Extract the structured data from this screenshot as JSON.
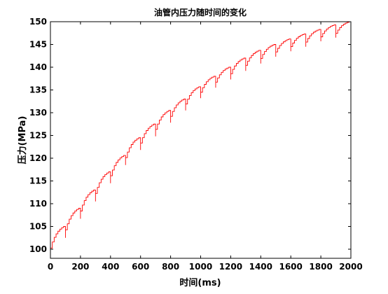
{
  "chart_data": {
    "type": "line",
    "title": "油管内压力随时间的变化",
    "xlabel": "时间(ms)",
    "ylabel": "压力(MPa)",
    "xlim": [
      0,
      2000
    ],
    "ylim": [
      98,
      150
    ],
    "xticks": [
      "0",
      "200",
      "400",
      "600",
      "800",
      "1000",
      "1200",
      "1400",
      "1600",
      "1800",
      "2000"
    ],
    "yticks": [
      "100",
      "105",
      "110",
      "115",
      "120",
      "125",
      "130",
      "135",
      "140",
      "145",
      "150"
    ],
    "grid": false,
    "legend": "none",
    "line_color": "#ff0000",
    "series": [
      {
        "description": "pressure sawtooth: rising curve with drop every 100 ms",
        "segments": [
          {
            "t_start": 0,
            "t_end": 100,
            "p_start": 98.5,
            "p_end": 105.0
          },
          {
            "t_start": 100,
            "t_end": 200,
            "p_start": 102.5,
            "p_end": 109.0
          },
          {
            "t_start": 200,
            "t_end": 300,
            "p_start": 106.7,
            "p_end": 113.0
          },
          {
            "t_start": 300,
            "t_end": 400,
            "p_start": 110.5,
            "p_end": 117.0
          },
          {
            "t_start": 400,
            "t_end": 500,
            "p_start": 114.5,
            "p_end": 120.6
          },
          {
            "t_start": 500,
            "t_end": 600,
            "p_start": 118.5,
            "p_end": 124.5
          },
          {
            "t_start": 600,
            "t_end": 700,
            "p_start": 121.8,
            "p_end": 127.5
          },
          {
            "t_start": 700,
            "t_end": 800,
            "p_start": 124.8,
            "p_end": 130.5
          },
          {
            "t_start": 800,
            "t_end": 900,
            "p_start": 127.8,
            "p_end": 133.0
          },
          {
            "t_start": 900,
            "t_end": 1000,
            "p_start": 130.5,
            "p_end": 135.7
          },
          {
            "t_start": 1000,
            "t_end": 1100,
            "p_start": 133.2,
            "p_end": 138.0
          },
          {
            "t_start": 1100,
            "t_end": 1200,
            "p_start": 135.5,
            "p_end": 140.0
          },
          {
            "t_start": 1200,
            "t_end": 1300,
            "p_start": 137.3,
            "p_end": 142.0
          },
          {
            "t_start": 1300,
            "t_end": 1400,
            "p_start": 139.2,
            "p_end": 143.7
          },
          {
            "t_start": 1400,
            "t_end": 1500,
            "p_start": 140.8,
            "p_end": 145.0
          },
          {
            "t_start": 1500,
            "t_end": 1600,
            "p_start": 142.3,
            "p_end": 146.2
          },
          {
            "t_start": 1600,
            "t_end": 1700,
            "p_start": 143.5,
            "p_end": 147.3
          },
          {
            "t_start": 1700,
            "t_end": 1800,
            "p_start": 144.5,
            "p_end": 148.3
          },
          {
            "t_start": 1800,
            "t_end": 1900,
            "p_start": 145.7,
            "p_end": 149.3
          },
          {
            "t_start": 1900,
            "t_end": 2000,
            "p_start": 146.5,
            "p_end": 150.0
          }
        ]
      }
    ]
  }
}
